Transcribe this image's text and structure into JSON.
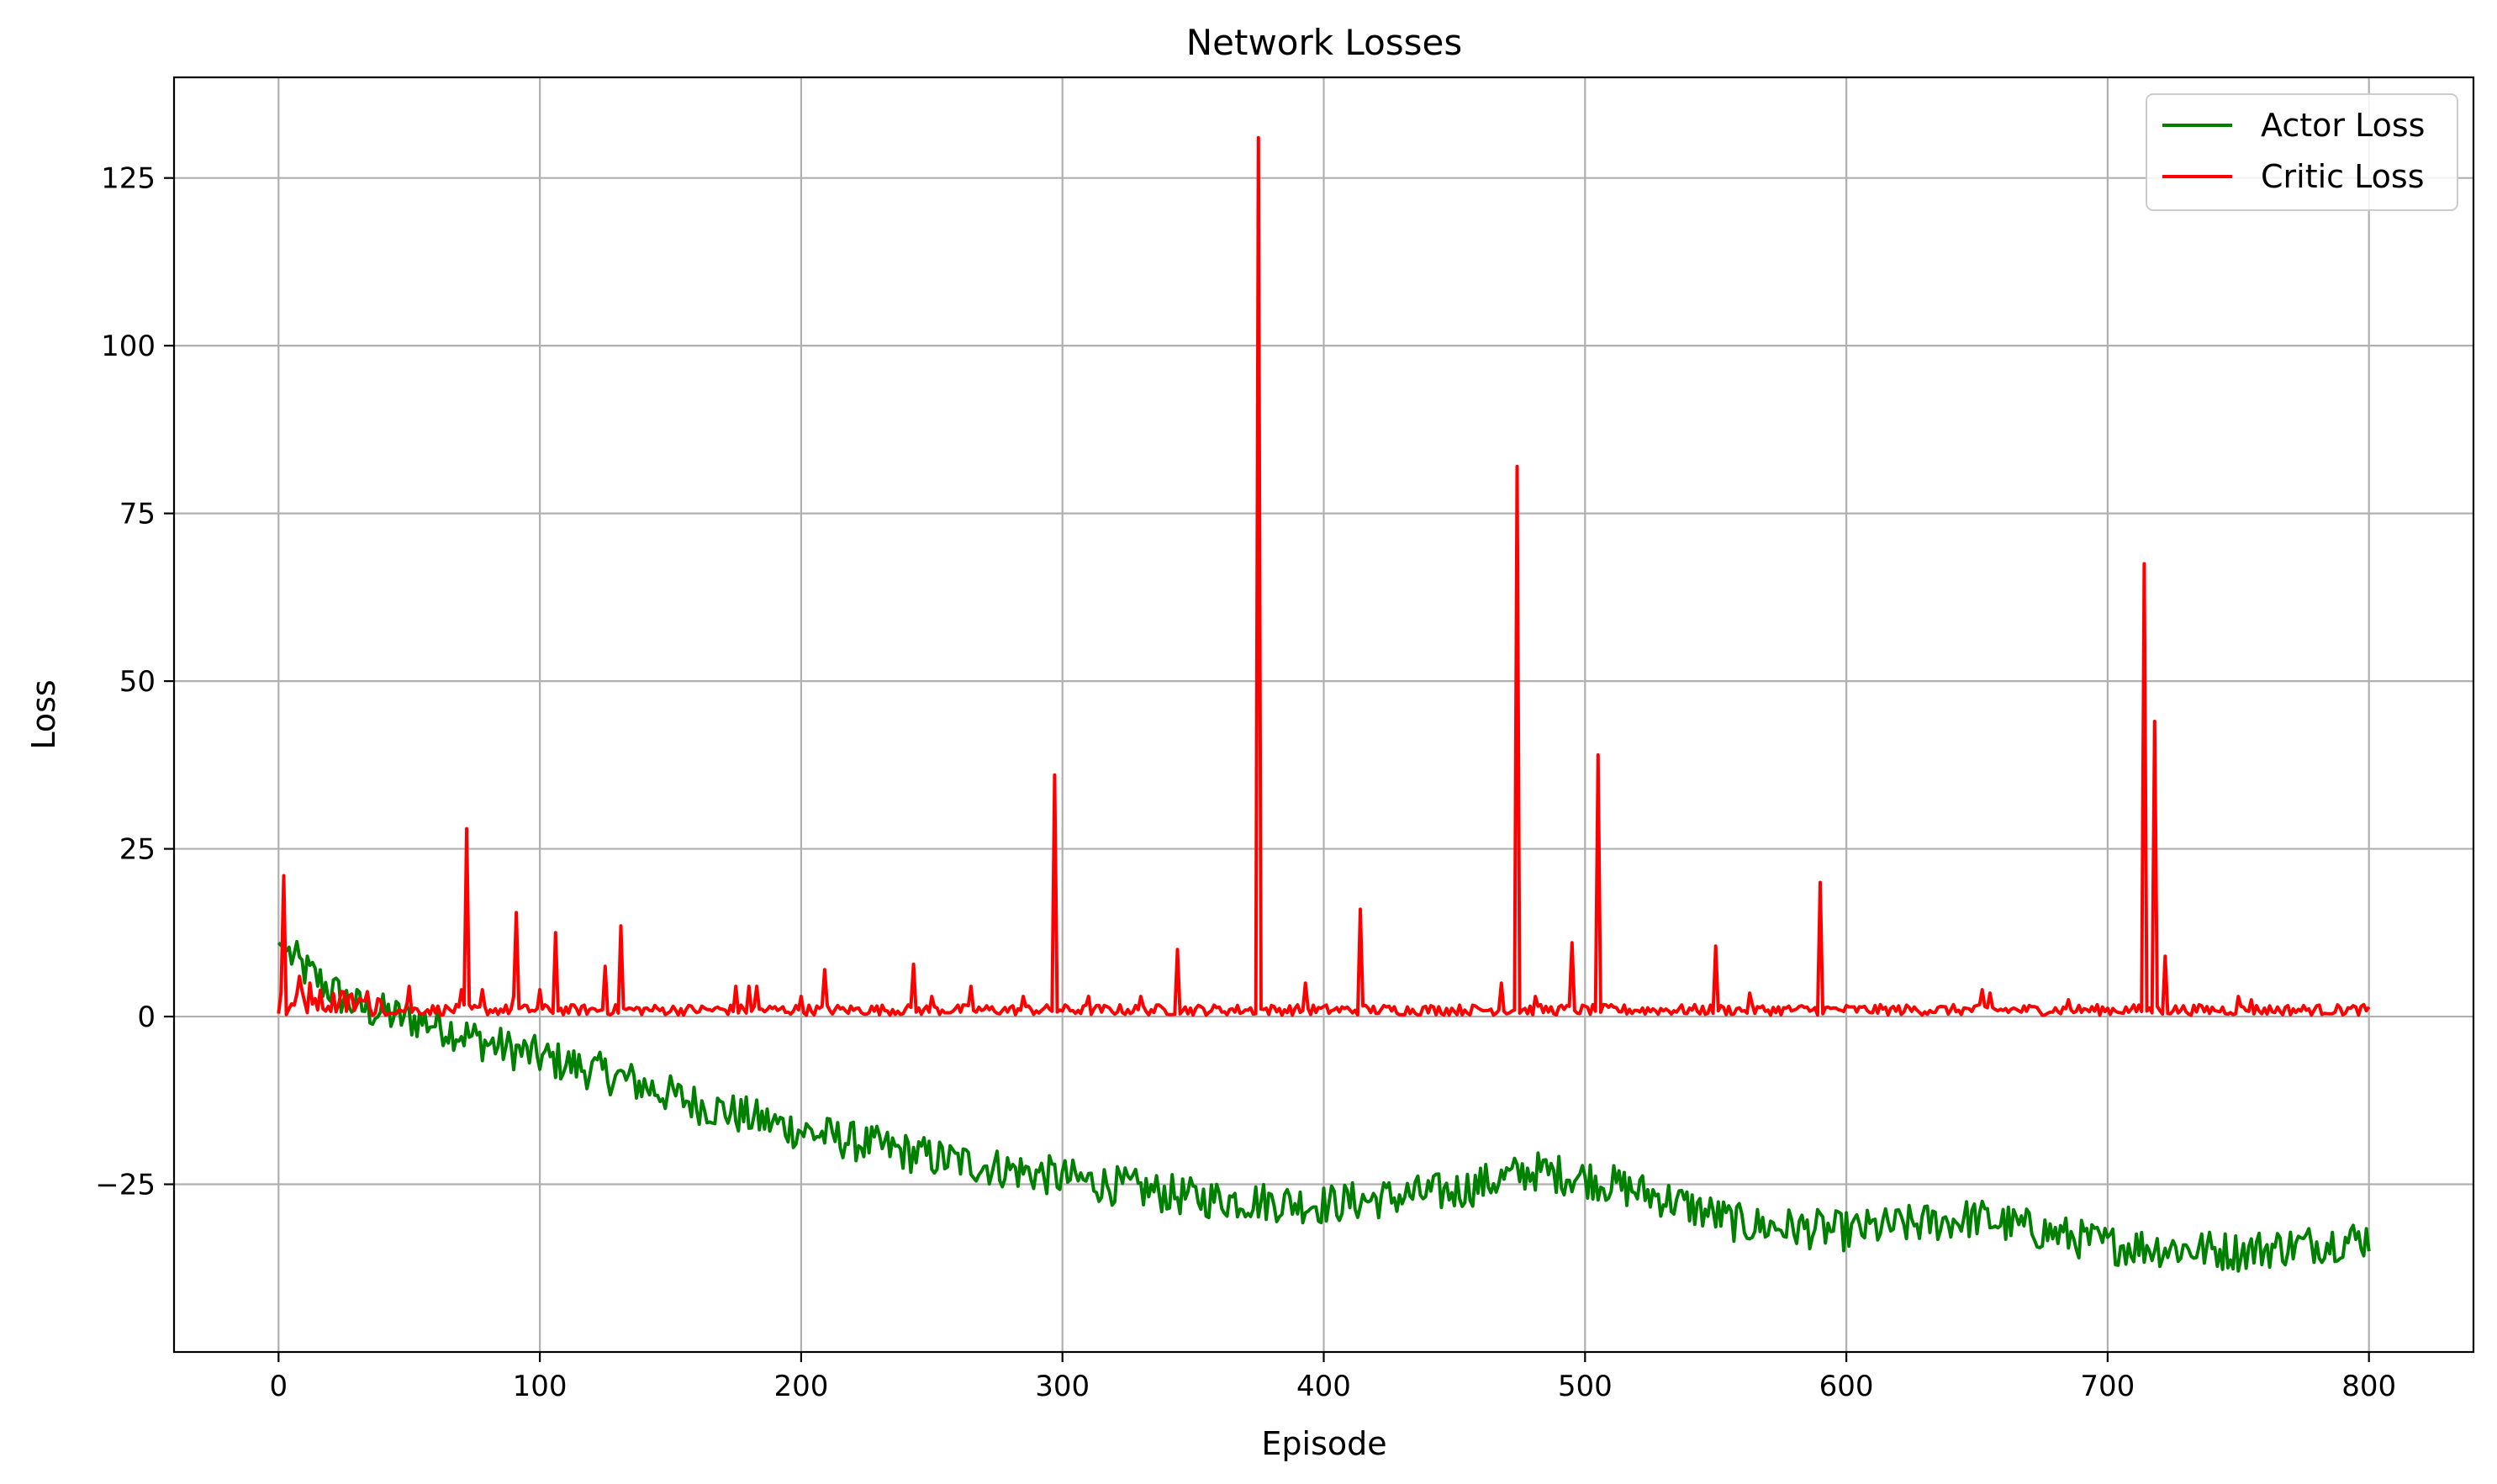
{
  "chart_data": {
    "type": "line",
    "title": "Network Losses",
    "xlabel": "Episode",
    "ylabel": "Loss",
    "xlim": [
      -40,
      840
    ],
    "ylim": [
      -50,
      140
    ],
    "xticks": [
      0,
      100,
      200,
      300,
      400,
      500,
      600,
      700,
      800
    ],
    "yticks": [
      -25,
      0,
      25,
      50,
      75,
      100,
      125
    ],
    "ytick_labels": [
      "−25",
      "0",
      "25",
      "50",
      "75",
      "100",
      "125"
    ],
    "grid": true,
    "legend_position": "top-right",
    "series": [
      {
        "name": "Actor Loss",
        "color": "#008000",
        "keypoints": [
          [
            0,
            11
          ],
          [
            10,
            7
          ],
          [
            20,
            4
          ],
          [
            30,
            1.5
          ],
          [
            45,
            0
          ],
          [
            60,
            -1
          ],
          [
            80,
            -4
          ],
          [
            100,
            -6
          ],
          [
            130,
            -9
          ],
          [
            160,
            -13
          ],
          [
            200,
            -17
          ],
          [
            250,
            -21
          ],
          [
            300,
            -24
          ],
          [
            350,
            -27
          ],
          [
            400,
            -28
          ],
          [
            450,
            -26
          ],
          [
            480,
            -23
          ],
          [
            500,
            -24
          ],
          [
            530,
            -27
          ],
          [
            560,
            -31
          ],
          [
            600,
            -32
          ],
          [
            650,
            -30
          ],
          [
            700,
            -34
          ],
          [
            750,
            -35
          ],
          [
            800,
            -33
          ]
        ],
        "noise": 3.0
      },
      {
        "name": "Critic Loss",
        "color": "#ff0000",
        "baseline": 1.0,
        "spikes": [
          [
            2,
            21
          ],
          [
            8,
            6
          ],
          [
            12,
            5
          ],
          [
            50,
            4.5
          ],
          [
            70,
            4
          ],
          [
            72,
            28
          ],
          [
            78,
            4
          ],
          [
            90,
            3
          ],
          [
            91,
            15.5
          ],
          [
            100,
            4
          ],
          [
            106,
            12.5
          ],
          [
            125,
            7.5
          ],
          [
            131,
            13.5
          ],
          [
            175,
            4.5
          ],
          [
            180,
            4.5
          ],
          [
            183,
            4.5
          ],
          [
            200,
            3
          ],
          [
            209,
            7
          ],
          [
            243,
            7.8
          ],
          [
            250,
            3
          ],
          [
            265,
            4.5
          ],
          [
            285,
            3
          ],
          [
            297,
            36
          ],
          [
            310,
            3
          ],
          [
            330,
            3
          ],
          [
            344,
            10
          ],
          [
            375,
            131
          ],
          [
            393,
            5
          ],
          [
            414,
            16
          ],
          [
            468,
            5
          ],
          [
            474,
            82
          ],
          [
            481,
            3
          ],
          [
            495,
            11
          ],
          [
            505,
            39
          ],
          [
            550,
            10.5
          ],
          [
            563,
            3.5
          ],
          [
            590,
            20
          ],
          [
            652,
            4
          ],
          [
            655,
            3.5
          ],
          [
            685,
            2.5
          ],
          [
            714,
            67.5
          ],
          [
            718,
            44
          ],
          [
            722,
            9
          ],
          [
            750,
            3
          ],
          [
            755,
            2.5
          ]
        ]
      }
    ]
  }
}
